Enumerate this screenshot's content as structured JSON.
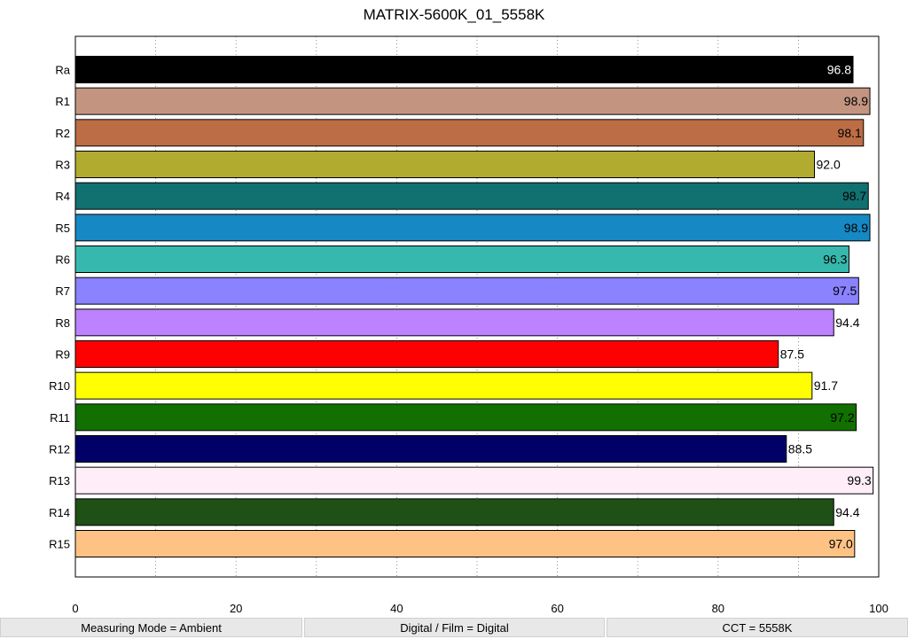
{
  "chart_data": {
    "type": "bar",
    "orientation": "horizontal",
    "title": "MATRIX-5600K_01_5558K",
    "categories": [
      "Ra",
      "R1",
      "R2",
      "R3",
      "R4",
      "R5",
      "R6",
      "R7",
      "R8",
      "R9",
      "R10",
      "R11",
      "R12",
      "R13",
      "R14",
      "R15"
    ],
    "values": [
      96.8,
      98.9,
      98.1,
      92.0,
      98.7,
      98.9,
      96.3,
      97.5,
      94.4,
      87.5,
      91.7,
      97.2,
      88.5,
      99.3,
      94.4,
      97.0
    ],
    "value_labels": [
      "96.8",
      "98.9",
      "98.1",
      "92.0",
      "98.7",
      "98.9",
      "96.3",
      "97.5",
      "94.4",
      "87.5",
      "91.7",
      "97.2",
      "88.5",
      "99.3",
      "94.4",
      "97.0"
    ],
    "colors": [
      "#000000",
      "#c39580",
      "#bc6d45",
      "#b1ab2f",
      "#117070",
      "#1688c4",
      "#37b8ae",
      "#8a82ff",
      "#bd82ff",
      "#ff0000",
      "#ffff00",
      "#117000",
      "#000066",
      "#ffeef8",
      "#1f5015",
      "#ffc285"
    ],
    "label_colors": [
      "#ffffff",
      "#000000",
      "#000000",
      "#000000",
      "#000000",
      "#000000",
      "#000000",
      "#000000",
      "#000000",
      "#000000",
      "#000000",
      "#000000",
      "#000000",
      "#000000",
      "#000000",
      "#000000"
    ],
    "xlim": [
      0,
      100
    ],
    "xticks": [
      0,
      20,
      40,
      60,
      80,
      100
    ],
    "xlabel": "",
    "ylabel": "",
    "grid": "vertical dotted every 10"
  },
  "footer": {
    "measuring_mode": "Measuring Mode = Ambient",
    "digital_film": "Digital / Film = Digital",
    "cct": "CCT = 5558K"
  }
}
